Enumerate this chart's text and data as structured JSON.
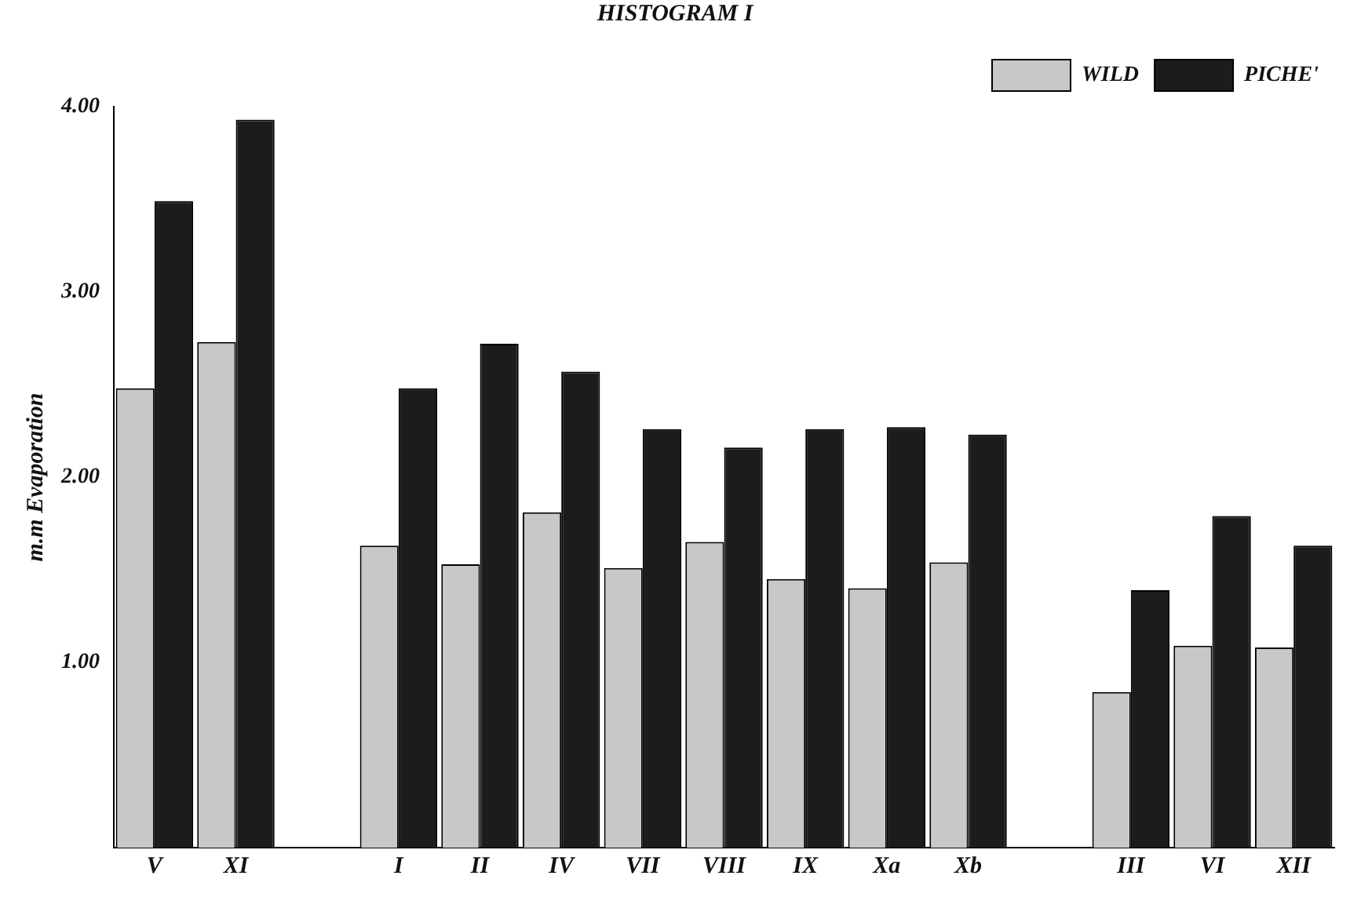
{
  "chart_data": {
    "type": "bar",
    "title": "HISTOGRAM I",
    "ylabel": "m.m Evaporation",
    "categories": [
      "V",
      "XI",
      null,
      "I",
      "II",
      "IV",
      "VII",
      "VIII",
      "IX",
      "Xa",
      "Xb",
      null,
      "III",
      "VI",
      "XII"
    ],
    "series": [
      {
        "name": "WILD",
        "color": "#c8c8c8",
        "values": [
          2.48,
          2.73,
          null,
          1.63,
          1.53,
          1.81,
          1.51,
          1.65,
          1.45,
          1.4,
          1.54,
          null,
          0.84,
          1.09,
          1.08
        ]
      },
      {
        "name": "PICHE'",
        "color": "#1c1c1c",
        "values": [
          3.49,
          3.93,
          null,
          2.48,
          2.72,
          2.57,
          2.26,
          2.16,
          2.26,
          2.27,
          2.23,
          null,
          1.39,
          1.79,
          1.63
        ]
      }
    ],
    "ylim": [
      0,
      4
    ],
    "yticks": [
      {
        "value": 1,
        "label": "1.00"
      },
      {
        "value": 2,
        "label": "2.00"
      },
      {
        "value": 3,
        "label": "3.00"
      },
      {
        "value": 4,
        "label": "4.00"
      }
    ],
    "grid": false,
    "legend": "top right"
  }
}
